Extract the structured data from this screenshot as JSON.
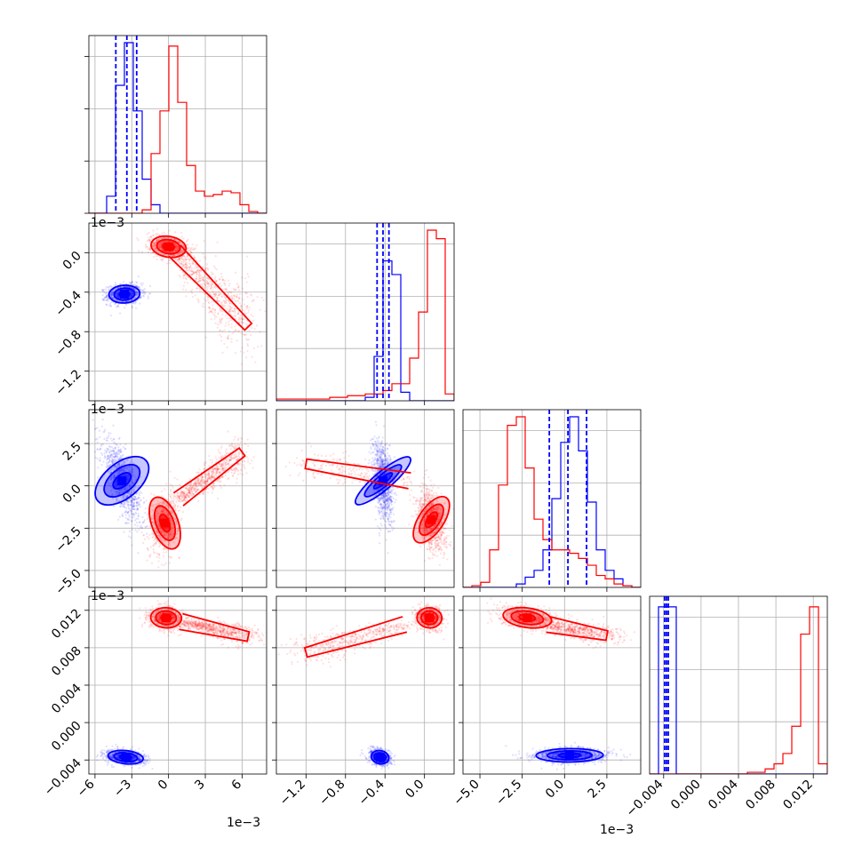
{
  "chart_data": {
    "type": "scatter",
    "title": "",
    "figure_kind": "corner-plot",
    "grid": true,
    "colors": {
      "blue": "#0000ff",
      "red": "#ff0000",
      "grid": "#b0b0b0",
      "axes": "#000000"
    },
    "series": [
      {
        "color": "#0000ff",
        "means": [
          -0.0035,
          -0.00042,
          0.0002,
          -0.0037
        ],
        "quantile_lines": [
          [
            -0.0043,
            -0.0034,
            -0.0026
          ],
          [
            -0.00048,
            -0.00042,
            -0.00036
          ],
          [
            -0.0009,
            0.0002,
            0.0013
          ],
          [
            -0.0039,
            -0.0037,
            -0.0035
          ]
        ]
      },
      {
        "color": "#ff0000",
        "means": [
          0.0003,
          5e-05,
          -0.0022,
          0.0112
        ]
      }
    ],
    "variables": [
      {
        "ticks": [
          -6,
          -3,
          0,
          3,
          6
        ],
        "tick_labels": [
          "−6",
          "−3",
          "0",
          "3",
          "6"
        ],
        "offset": "1e−3",
        "range": [
          -6.5,
          8.0
        ],
        "scale": 0.001
      },
      {
        "ticks": [
          -1.2,
          -0.8,
          -0.4,
          0.0
        ],
        "tick_labels": [
          "−1.2",
          "−0.8",
          "−0.4",
          "0.0"
        ],
        "offset": "1e−3",
        "range": [
          -1.5,
          0.3
        ],
        "scale": 0.001
      },
      {
        "ticks": [
          -5.0,
          -2.5,
          0.0,
          2.5
        ],
        "tick_labels": [
          "−5.0",
          "−2.5",
          "0.0",
          "2.5"
        ],
        "offset": "1e−3",
        "range": [
          -6.0,
          4.5
        ],
        "scale": 0.001
      },
      {
        "ticks": [
          -0.004,
          0.0,
          0.004,
          0.008,
          0.012
        ],
        "tick_labels": [
          "−0.004",
          "0.000",
          "0.004",
          "0.008",
          "0.012"
        ],
        "offset": "",
        "range": [
          -0.0055,
          0.0135
        ],
        "scale": 1
      }
    ],
    "histograms": [
      {
        "variable": 0,
        "edges": [
          -6.5,
          -5.775,
          -5.05,
          -4.325,
          -3.6,
          -2.875,
          -2.15,
          -1.425,
          -0.7,
          0.025,
          0.75,
          1.475,
          2.2,
          2.925,
          3.65,
          4.375,
          5.1,
          5.825,
          6.55,
          7.275,
          8.0
        ],
        "blue": [
          0,
          0,
          0.1,
          0.75,
          1.0,
          0.6,
          0.2,
          0.05,
          0,
          0,
          0,
          0,
          0,
          0,
          0,
          0,
          0,
          0,
          0,
          0
        ],
        "red": [
          0,
          0,
          0,
          0,
          0,
          0,
          0.02,
          0.35,
          0.6,
          0.98,
          0.65,
          0.28,
          0.13,
          0.1,
          0.11,
          0.13,
          0.12,
          0.05,
          0.01,
          0
        ]
      },
      {
        "variable": 1,
        "edges": [
          -1.5,
          -1.41,
          -1.32,
          -1.23,
          -1.14,
          -1.05,
          -0.96,
          -0.87,
          -0.78,
          -0.69,
          -0.6,
          -0.51,
          -0.42,
          -0.33,
          -0.24,
          -0.15,
          -0.06,
          0.03,
          0.12,
          0.21,
          0.3
        ],
        "blue": [
          0,
          0,
          0,
          0,
          0,
          0,
          0,
          0,
          0,
          0,
          0.02,
          0.26,
          0.82,
          0.74,
          0.05,
          0,
          0,
          0,
          0,
          0
        ],
        "red": [
          0.01,
          0.01,
          0.01,
          0.01,
          0.01,
          0.01,
          0.02,
          0.02,
          0.03,
          0.03,
          0.04,
          0.04,
          0.06,
          0.1,
          0.1,
          0.25,
          0.52,
          1.0,
          0.95,
          0.04
        ]
      },
      {
        "variable": 2,
        "edges": [
          -6.0,
          -5.475,
          -4.95,
          -4.425,
          -3.9,
          -3.375,
          -2.85,
          -2.325,
          -1.8,
          -1.275,
          -0.75,
          -0.225,
          0.3,
          0.825,
          1.35,
          1.875,
          2.4,
          2.925,
          3.45,
          3.975,
          4.5
        ],
        "blue": [
          0,
          0,
          0,
          0,
          0,
          0,
          0.02,
          0.06,
          0.1,
          0.22,
          0.52,
          0.85,
          1.0,
          0.8,
          0.5,
          0.22,
          0.1,
          0.05,
          0.01,
          0
        ],
        "red": [
          0,
          0.01,
          0.03,
          0.22,
          0.6,
          0.95,
          1.0,
          0.7,
          0.4,
          0.28,
          0.22,
          0.22,
          0.2,
          0.17,
          0.13,
          0.07,
          0.05,
          0.02,
          0.01,
          0
        ]
      },
      {
        "variable": 3,
        "edges": [
          -0.0055,
          -0.00455,
          -0.0036,
          -0.00265,
          -0.0017,
          -0.00075,
          0.0002,
          0.00115,
          0.0021,
          0.00305,
          0.004,
          0.00495,
          0.0059,
          0.00685,
          0.0078,
          0.00875,
          0.0097,
          0.01065,
          0.0116,
          0.01255,
          0.0135
        ],
        "blue": [
          0,
          0.98,
          0.98,
          0,
          0,
          0,
          0,
          0,
          0,
          0,
          0,
          0,
          0,
          0,
          0,
          0,
          0,
          0,
          0,
          0
        ],
        "red": [
          0,
          0,
          0,
          0,
          0,
          0,
          0,
          0,
          0,
          0,
          0,
          0.01,
          0.01,
          0.03,
          0.06,
          0.12,
          0.28,
          0.82,
          0.98,
          0.06
        ]
      }
    ],
    "pairs": [
      {
        "x_var": 0,
        "y_var": 1,
        "blue": {
          "center": [
            -3.6,
            -0.42
          ],
          "sx": 0.7,
          "sy": 0.05,
          "rho": 0.1,
          "n": 900
        },
        "red": {
          "center": [
            0.0,
            0.06
          ],
          "sx": 0.8,
          "sy": 0.06,
          "rho": -0.3,
          "n": 700
        },
        "red_tail": {
          "from": [
            0.5,
            0.02
          ],
          "to": [
            6.5,
            -0.75
          ],
          "spread": [
            0.9,
            0.18
          ],
          "n": 700
        }
      },
      {
        "x_var": 0,
        "y_var": 2,
        "blue": {
          "center": [
            -3.8,
            0.3
          ],
          "sx": 0.8,
          "sy": 1.2,
          "rho": -0.72,
          "n": 1000
        },
        "red": {
          "center": [
            -0.3,
            -2.2
          ],
          "sx": 0.6,
          "sy": 0.9,
          "rho": 0.2,
          "n": 700
        },
        "red_tail": {
          "from": [
            0.8,
            -0.8
          ],
          "to": [
            6.0,
            2.0
          ],
          "spread": [
            0.6,
            0.6
          ],
          "n": 700
        }
      },
      {
        "x_var": 1,
        "y_var": 2,
        "blue": {
          "center": [
            -0.42,
            0.3
          ],
          "sx": 0.05,
          "sy": 1.2,
          "rho": -0.35,
          "n": 1000
        },
        "red": {
          "center": [
            0.07,
            -2.0
          ],
          "sx": 0.07,
          "sy": 0.9,
          "rho": -0.35,
          "n": 900
        },
        "red_tail": {
          "from": [
            -0.15,
            0.3
          ],
          "to": [
            -1.2,
            1.3
          ],
          "spread": [
            0.15,
            0.5
          ],
          "n": 250
        }
      },
      {
        "x_var": 0,
        "y_var": 3,
        "blue": {
          "center": [
            -3.5,
            -0.0037
          ],
          "sx": 0.8,
          "sy": 0.0004,
          "rho": -0.3,
          "n": 900
        },
        "red": {
          "center": [
            -0.2,
            0.0112
          ],
          "sx": 0.7,
          "sy": 0.0006,
          "rho": -0.1,
          "n": 700
        },
        "red_tail": {
          "from": [
            1.0,
            0.0108
          ],
          "to": [
            6.5,
            0.0092
          ],
          "spread": [
            0.8,
            0.0006
          ],
          "n": 700
        }
      },
      {
        "x_var": 1,
        "y_var": 3,
        "blue": {
          "center": [
            -0.45,
            -0.0037
          ],
          "sx": 0.05,
          "sy": 0.0004,
          "rho": -0.3,
          "n": 900
        },
        "red": {
          "center": [
            0.05,
            0.0112
          ],
          "sx": 0.07,
          "sy": 0.0006,
          "rho": -0.1,
          "n": 700
        },
        "red_tail": {
          "from": [
            -0.2,
            0.0105
          ],
          "to": [
            -1.2,
            0.0075
          ],
          "spread": [
            0.16,
            0.0008
          ],
          "n": 500
        }
      },
      {
        "x_var": 2,
        "y_var": 3,
        "blue": {
          "center": [
            0.3,
            -0.0035
          ],
          "sx": 1.1,
          "sy": 0.0004,
          "rho": 0.05,
          "n": 1000
        },
        "red": {
          "center": [
            -2.2,
            0.0112
          ],
          "sx": 0.8,
          "sy": 0.0006,
          "rho": -0.35,
          "n": 700
        },
        "red_tail": {
          "from": [
            -1.0,
            0.0105
          ],
          "to": [
            2.5,
            0.0093
          ],
          "spread": [
            0.8,
            0.0006
          ],
          "n": 600
        }
      }
    ]
  }
}
